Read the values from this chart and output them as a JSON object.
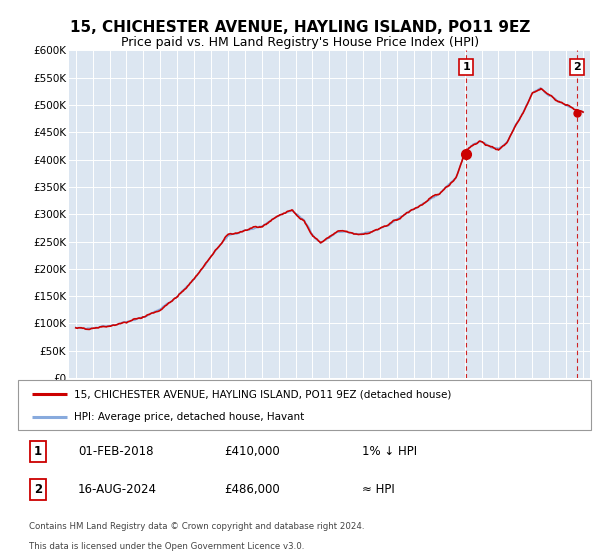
{
  "title": "15, CHICHESTER AVENUE, HAYLING ISLAND, PO11 9EZ",
  "subtitle": "Price paid vs. HM Land Registry's House Price Index (HPI)",
  "legend_line1": "15, CHICHESTER AVENUE, HAYLING ISLAND, PO11 9EZ (detached house)",
  "legend_line2": "HPI: Average price, detached house, Havant",
  "annotation1_date": "01-FEB-2018",
  "annotation1_price": "£410,000",
  "annotation1_hpi": "1% ↓ HPI",
  "annotation2_date": "16-AUG-2024",
  "annotation2_price": "£486,000",
  "annotation2_hpi": "≈ HPI",
  "footer1": "Contains HM Land Registry data © Crown copyright and database right 2024.",
  "footer2": "This data is licensed under the Open Government Licence v3.0.",
  "sale1_date_num": 2018.083,
  "sale1_price": 410000,
  "sale2_date_num": 2024.621,
  "sale2_price": 486000,
  "vline1_date_num": 2018.083,
  "vline2_date_num": 2024.621,
  "price_line_color": "#cc0000",
  "hpi_line_color": "#88aadd",
  "vline_color": "#cc0000",
  "plot_bg_color": "#dce6f1",
  "annotation_box_color": "#cc0000",
  "ylim_min": 0,
  "ylim_max": 600000,
  "xlim_min": 1994.6,
  "xlim_max": 2025.4,
  "hpi_curve_x": [
    1995.0,
    1996.0,
    1997.0,
    1998.0,
    1999.0,
    2000.0,
    2001.0,
    2002.0,
    2003.0,
    2004.0,
    2005.0,
    2006.0,
    2007.0,
    2007.8,
    2008.5,
    2009.0,
    2009.5,
    2010.0,
    2010.5,
    2011.0,
    2011.5,
    2012.0,
    2012.5,
    2013.0,
    2013.5,
    2014.0,
    2014.5,
    2015.0,
    2015.5,
    2016.0,
    2016.5,
    2017.0,
    2017.5,
    2018.0,
    2018.5,
    2019.0,
    2019.3,
    2019.6,
    2020.0,
    2020.5,
    2021.0,
    2021.5,
    2022.0,
    2022.5,
    2023.0,
    2023.5,
    2024.0,
    2024.5,
    2025.0
  ],
  "hpi_curve_y": [
    90000,
    92000,
    96000,
    102000,
    112000,
    125000,
    148000,
    182000,
    222000,
    262000,
    270000,
    277000,
    298000,
    307000,
    288000,
    260000,
    248000,
    258000,
    268000,
    268000,
    263000,
    264000,
    268000,
    274000,
    280000,
    290000,
    300000,
    310000,
    318000,
    328000,
    338000,
    352000,
    368000,
    413000,
    428000,
    432000,
    428000,
    422000,
    418000,
    432000,
    462000,
    490000,
    522000,
    530000,
    518000,
    508000,
    500000,
    492000,
    488000
  ],
  "price_curve_x": [
    1995.0,
    1996.0,
    1997.0,
    1998.0,
    1999.0,
    2000.0,
    2001.0,
    2002.0,
    2003.0,
    2004.0,
    2005.0,
    2006.0,
    2007.0,
    2007.8,
    2008.5,
    2009.0,
    2009.5,
    2010.0,
    2010.5,
    2011.0,
    2011.5,
    2012.0,
    2012.5,
    2013.0,
    2013.5,
    2014.0,
    2014.5,
    2015.0,
    2015.5,
    2016.0,
    2016.5,
    2017.0,
    2017.5,
    2018.0,
    2018.5,
    2019.0,
    2019.3,
    2019.6,
    2020.0,
    2020.5,
    2021.0,
    2021.5,
    2022.0,
    2022.5,
    2023.0,
    2023.5,
    2024.0,
    2024.5,
    2025.0
  ],
  "price_curve_y": [
    90000,
    92000,
    96000,
    102000,
    112000,
    125000,
    148000,
    182000,
    222000,
    262000,
    270000,
    277000,
    298000,
    307000,
    288000,
    260000,
    248000,
    258000,
    268000,
    268000,
    263000,
    264000,
    268000,
    274000,
    280000,
    290000,
    300000,
    310000,
    318000,
    328000,
    338000,
    352000,
    368000,
    413000,
    428000,
    432000,
    428000,
    422000,
    418000,
    432000,
    462000,
    490000,
    522000,
    530000,
    518000,
    508000,
    500000,
    492000,
    488000
  ]
}
